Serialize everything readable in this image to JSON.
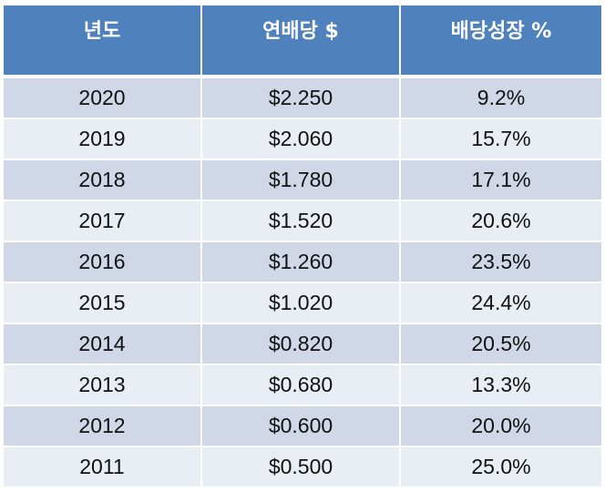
{
  "header": {
    "col_year": "년도",
    "col_dividend": "연배당 $",
    "col_growth": "배당성장 %"
  },
  "rows": [
    {
      "year": "2020",
      "dividend": "$2.250",
      "growth": "9.2%"
    },
    {
      "year": "2019",
      "dividend": "$2.060",
      "growth": "15.7%"
    },
    {
      "year": "2018",
      "dividend": "$1.780",
      "growth": "17.1%"
    },
    {
      "year": "2017",
      "dividend": "$1.520",
      "growth": "20.6%"
    },
    {
      "year": "2016",
      "dividend": "$1.260",
      "growth": "23.5%"
    },
    {
      "year": "2015",
      "dividend": "$1.020",
      "growth": "24.4%"
    },
    {
      "year": "2014",
      "dividend": "$0.820",
      "growth": "20.5%"
    },
    {
      "year": "2013",
      "dividend": "$0.680",
      "growth": "13.3%"
    },
    {
      "year": "2012",
      "dividend": "$0.600",
      "growth": "20.0%"
    },
    {
      "year": "2011",
      "dividend": "$0.500",
      "growth": "25.0%"
    }
  ],
  "colors": {
    "header_bg": "#4f81bd",
    "row_dark": "#d0d8e8",
    "row_light": "#e9edf4"
  }
}
